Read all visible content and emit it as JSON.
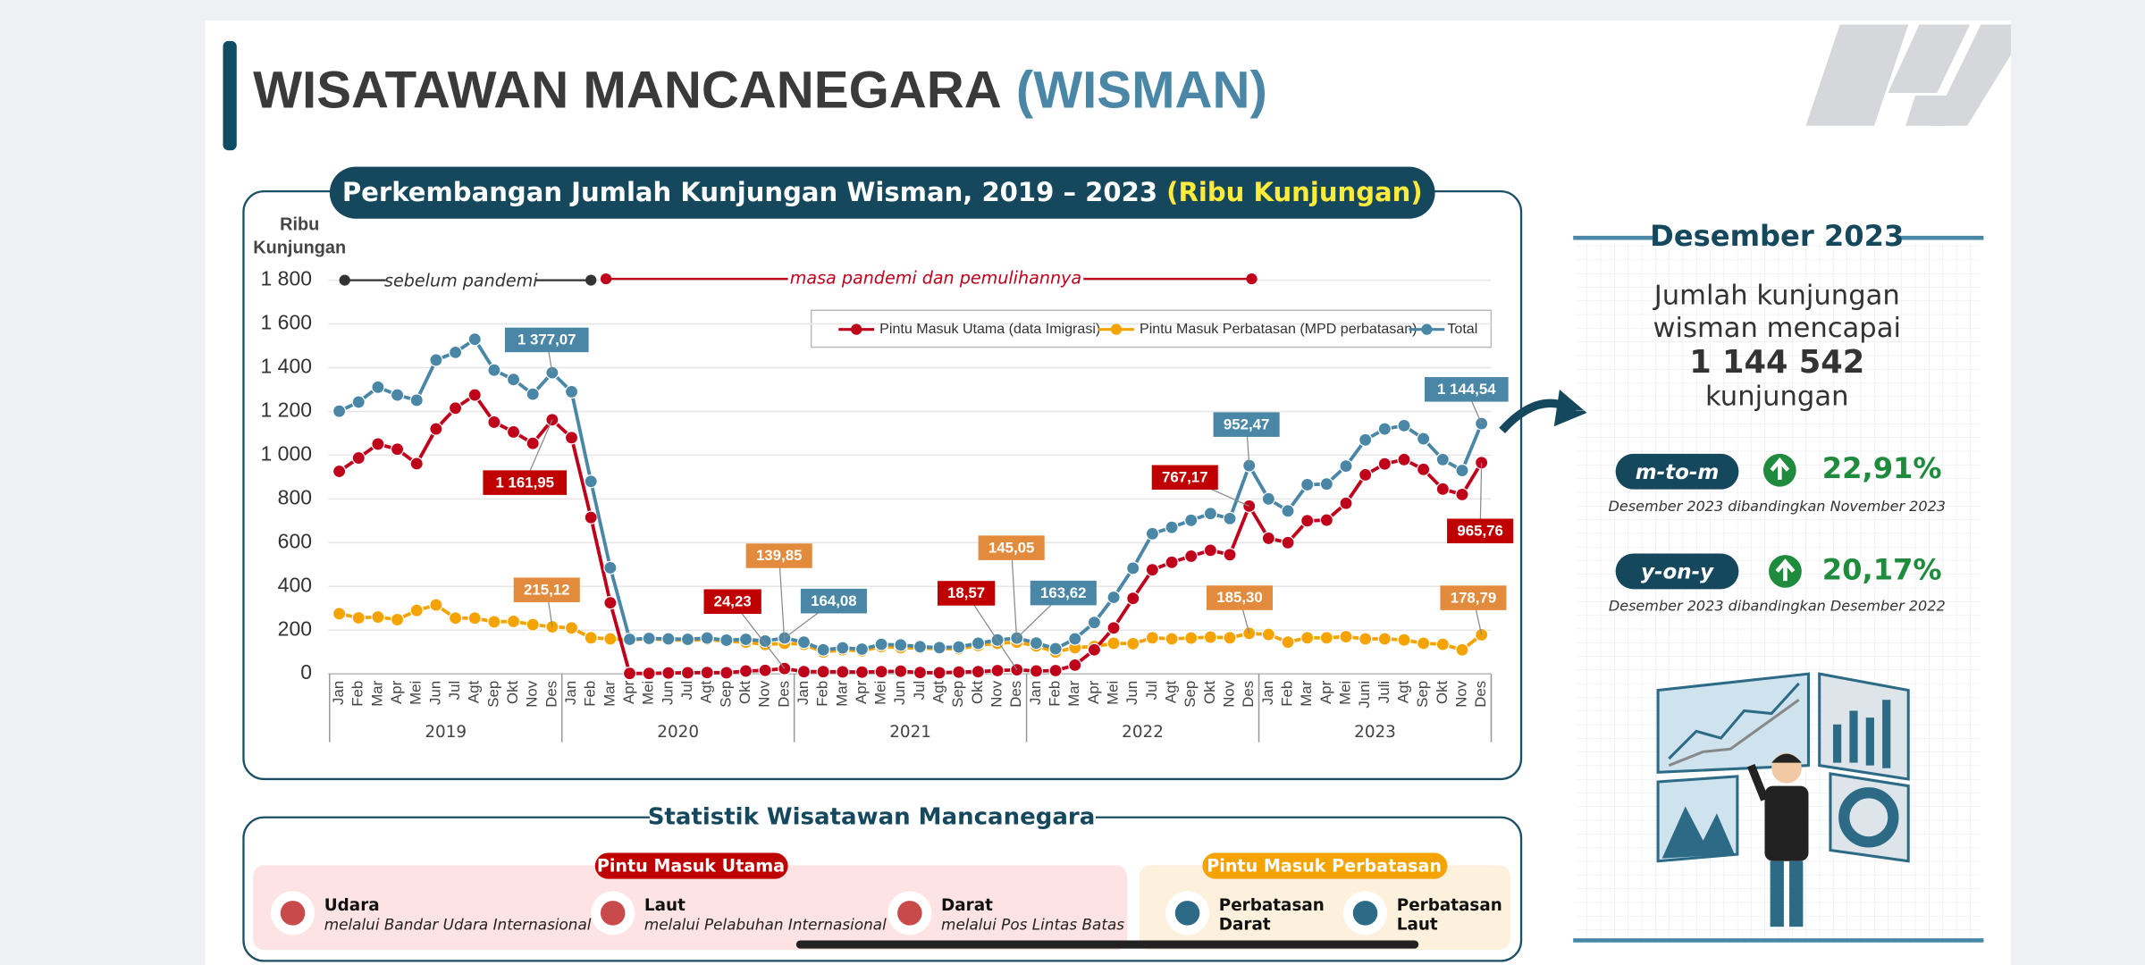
{
  "header": {
    "title": "WISATAWAN MANCANEGARA",
    "title_highlight": "(WISMAN)"
  },
  "chart_data": {
    "type": "line",
    "title": "Perkembangan Jumlah Kunjungan Wisman, 2019 – 2023",
    "title_highlight": "(Ribu Kunjungan)",
    "y_label": [
      "Ribu",
      "Kunjungan"
    ],
    "annotations": [
      "sebelum pandemi",
      "masa pandemi dan pemulihannya"
    ],
    "categories": [
      "Jan",
      "Feb",
      "Mar",
      "Apr",
      "Mei",
      "Jun",
      "Jul",
      "Agt",
      "Sep",
      "Okt",
      "Nov",
      "Des",
      "Jan",
      "Feb",
      "Mar",
      "Apr",
      "Mei",
      "Jun",
      "Jul",
      "Agt",
      "Sep",
      "Okt",
      "Nov",
      "Des",
      "Jan",
      "Feb",
      "Mar",
      "Apr",
      "Mei",
      "Jun",
      "Jul",
      "Agt",
      "Sep",
      "Okt",
      "Nov",
      "Des",
      "Jan",
      "Feb",
      "Mar",
      "Apr",
      "Mei",
      "Jun",
      "Jul",
      "Agt",
      "Sep",
      "Okt",
      "Nov",
      "Des",
      "Jan",
      "Feb",
      "Mar",
      "Apr",
      "Mei",
      "Juni",
      "Juli",
      "Agt",
      "Sep",
      "Okt",
      "Nov",
      "Des"
    ],
    "years": [
      "2019",
      "2020",
      "2021",
      "2022",
      "2023"
    ],
    "series": [
      {
        "name": "Pintu Masuk Utama (data Imigrasi)",
        "color": "#c0001a",
        "values": [
          926,
          987,
          1051,
          1027,
          961,
          1120,
          1215,
          1275,
          1151,
          1106,
          1054,
          1161.95,
          1080,
          715,
          325,
          2,
          2,
          4,
          5,
          6,
          5,
          13,
          16,
          24.23,
          10,
          10,
          9,
          8,
          10,
          12,
          6,
          5,
          8,
          10,
          15,
          18.57,
          13,
          15,
          40,
          110,
          210,
          345,
          476,
          510,
          538,
          565,
          545,
          767.17,
          620,
          600,
          700,
          703,
          780,
          910,
          960,
          980,
          935,
          845,
          820,
          965.76
        ],
        "value_labels": [
          null,
          null,
          null,
          null,
          null,
          null,
          null,
          null,
          null,
          null,
          null,
          "1 161,95",
          null,
          null,
          null,
          null,
          null,
          null,
          null,
          null,
          null,
          null,
          null,
          "24,23",
          null,
          null,
          null,
          null,
          null,
          null,
          null,
          null,
          null,
          null,
          null,
          "18,57",
          null,
          null,
          null,
          null,
          null,
          null,
          null,
          null,
          null,
          null,
          null,
          "767,17",
          null,
          null,
          null,
          null,
          null,
          null,
          null,
          null,
          null,
          null,
          null,
          "965,76"
        ]
      },
      {
        "name": "Pintu Masuk Perbatasan (MPD perbatasan)",
        "color": "#f5a300",
        "values": [
          275,
          256,
          260,
          248,
          290,
          315,
          255,
          255,
          238,
          240,
          225,
          215.12,
          210,
          165,
          160,
          156,
          160,
          156,
          153,
          158,
          149,
          145,
          134,
          139.85,
          135,
          100,
          110,
          105,
          125,
          120,
          118,
          115,
          115,
          130,
          140,
          145.05,
          128,
          100,
          120,
          125,
          140,
          138,
          165,
          160,
          164,
          168,
          165,
          185.3,
          180,
          145,
          165,
          165,
          170,
          160,
          160,
          155,
          140,
          135,
          110,
          178.79
        ],
        "value_labels": [
          null,
          null,
          null,
          null,
          null,
          null,
          null,
          null,
          null,
          null,
          null,
          "215,12",
          null,
          null,
          null,
          null,
          null,
          null,
          null,
          null,
          null,
          null,
          null,
          "139,85",
          null,
          null,
          null,
          null,
          null,
          null,
          null,
          null,
          null,
          null,
          null,
          "145,05",
          null,
          null,
          null,
          null,
          null,
          null,
          null,
          null,
          null,
          null,
          null,
          "185,30",
          null,
          null,
          null,
          null,
          null,
          null,
          null,
          null,
          null,
          null,
          null,
          "178,79"
        ]
      },
      {
        "name": "Total",
        "color": "#4a87a6",
        "values": [
          1201,
          1243,
          1311,
          1275,
          1251,
          1435,
          1470,
          1530,
          1389,
          1346,
          1279,
          1377.07,
          1290,
          880,
          485,
          158,
          162,
          160,
          158,
          164,
          154,
          158,
          150,
          164.08,
          145,
          110,
          119,
          113,
          135,
          132,
          124,
          120,
          123,
          140,
          155,
          163.62,
          141,
          115,
          160,
          235,
          350,
          483,
          641,
          670,
          702,
          733,
          710,
          952.47,
          800,
          745,
          865,
          868,
          950,
          1070,
          1120,
          1135,
          1075,
          980,
          930,
          1144.54
        ],
        "value_labels": [
          null,
          null,
          null,
          null,
          null,
          null,
          null,
          null,
          null,
          null,
          null,
          "1 377,07",
          null,
          null,
          null,
          null,
          null,
          null,
          null,
          null,
          null,
          null,
          null,
          "164,08",
          null,
          null,
          null,
          null,
          null,
          null,
          null,
          null,
          null,
          null,
          null,
          "163,62",
          null,
          null,
          null,
          null,
          null,
          null,
          null,
          null,
          null,
          null,
          null,
          "952,47",
          null,
          null,
          null,
          null,
          null,
          null,
          null,
          null,
          null,
          null,
          null,
          "1 144,54"
        ]
      }
    ],
    "label_colors": [
      "#c00000",
      "#e38b3d",
      "#4a87a6"
    ],
    "ylim": [
      0,
      1800
    ],
    "yticks": [
      0,
      200,
      400,
      600,
      800,
      {
        "value": 1000,
        "label": "1 000"
      },
      {
        "value": 1200,
        "label": "1 200"
      },
      {
        "value": 1400,
        "label": "1 400"
      },
      {
        "value": 1600,
        "label": "1 600"
      },
      {
        "value": 1800,
        "label": "1 800"
      }
    ],
    "grid": true,
    "legend": "top-right"
  },
  "summary": {
    "heading": "Desember 2023",
    "lines": [
      "Jumlah kunjungan",
      "wisman mencapai"
    ],
    "figure": "1 144 542",
    "unit": "kunjungan",
    "mtm": {
      "label": "m-to-m",
      "value": "22,91%",
      "note": "Desember 2023 dibandingkan November 2023"
    },
    "yoy": {
      "label": "y-on-y",
      "value": "20,17%",
      "note": "Desember 2023 dibandingkan Desember 2022"
    }
  },
  "statistics": {
    "title": "Statistik Wisatawan Mancanegara",
    "main": {
      "label": "Pintu Masuk Utama",
      "items": [
        {
          "name": "Udara",
          "desc": "melalui Bandar Udara Internasional"
        },
        {
          "name": "Laut",
          "desc": "melalui Pelabuhan Internasional"
        },
        {
          "name": "Darat",
          "desc": "melalui Pos Lintas Batas"
        }
      ]
    },
    "border": {
      "label": "Pintu Masuk Perbatasan",
      "items": [
        {
          "name": [
            "Perbatasan",
            "Darat"
          ]
        },
        {
          "name": [
            "Perbatasan",
            "Laut"
          ]
        }
      ]
    }
  }
}
